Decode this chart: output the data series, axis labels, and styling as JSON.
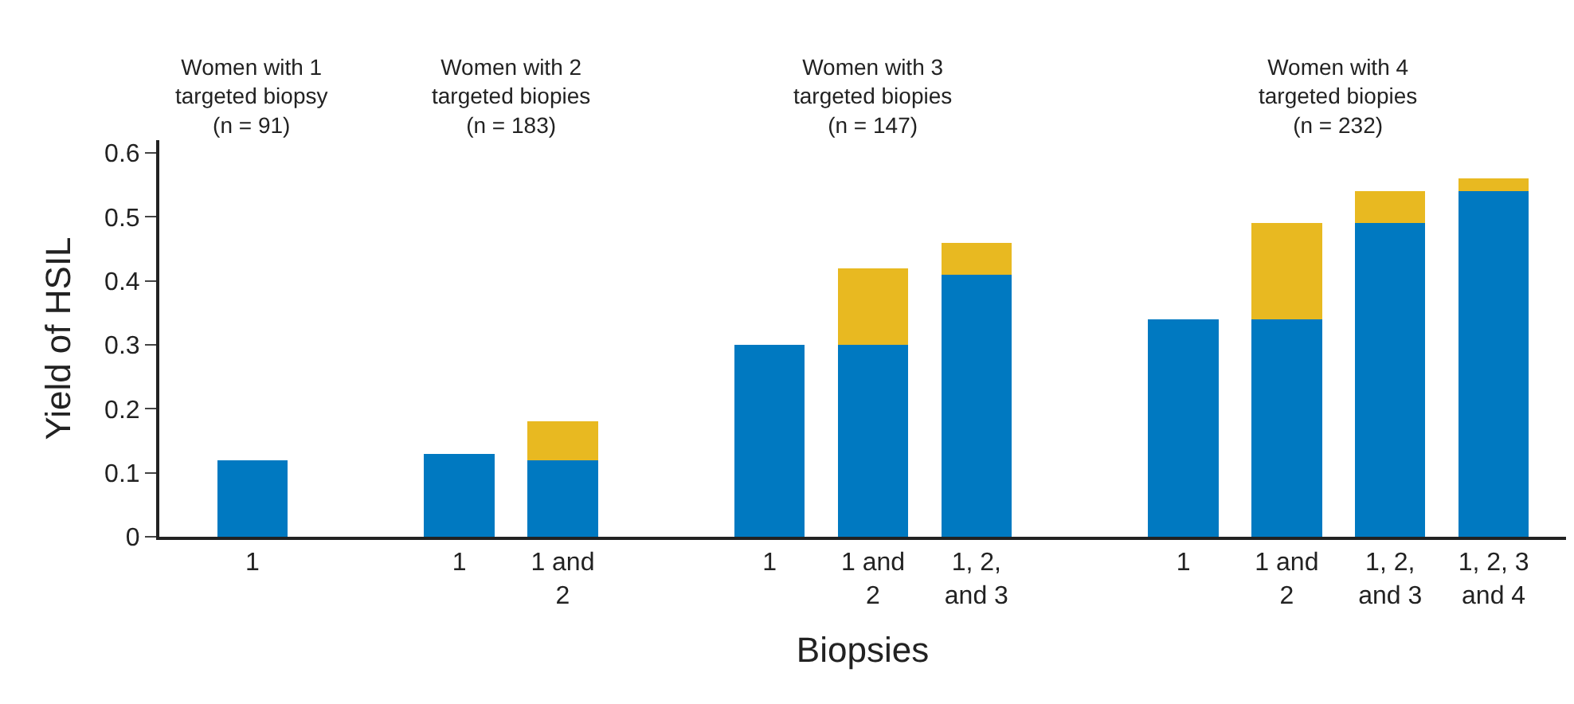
{
  "chart_data": {
    "type": "bar",
    "stacked": true,
    "categories": [
      "1",
      null,
      "1",
      "1 and\n2",
      null,
      "1",
      "1 and\n2",
      "1, 2,\nand 3",
      null,
      "1",
      "1 and\n2",
      "1, 2,\nand 3",
      "1, 2, 3\nand 4"
    ],
    "series": [
      {
        "color": "#0079c1",
        "values": [
          0.12,
          null,
          0.13,
          0.12,
          null,
          0.3,
          0.3,
          0.41,
          null,
          0.34,
          0.34,
          0.49,
          0.54
        ]
      },
      {
        "color": "#e8b921",
        "values": [
          null,
          null,
          null,
          0.06,
          null,
          null,
          0.12,
          0.05,
          null,
          null,
          0.15,
          0.05,
          0.02
        ]
      }
    ],
    "xlabel": "Biopsies",
    "ylabel": "Yield of HSIL",
    "ylim": [
      0,
      0.62
    ],
    "yticks": [
      0,
      0.1,
      0.2,
      0.3,
      0.4,
      0.5,
      0.6
    ],
    "annotations": [
      "Women with 1\ntargeted biopsy\n(n = 91)",
      "Women with 2\ntargeted biopies\n(n = 183)",
      "Women with 3\ntargeted biopies\n(n = 147)",
      "Women with 4\ntargeted biopies\n(n = 232)"
    ]
  }
}
